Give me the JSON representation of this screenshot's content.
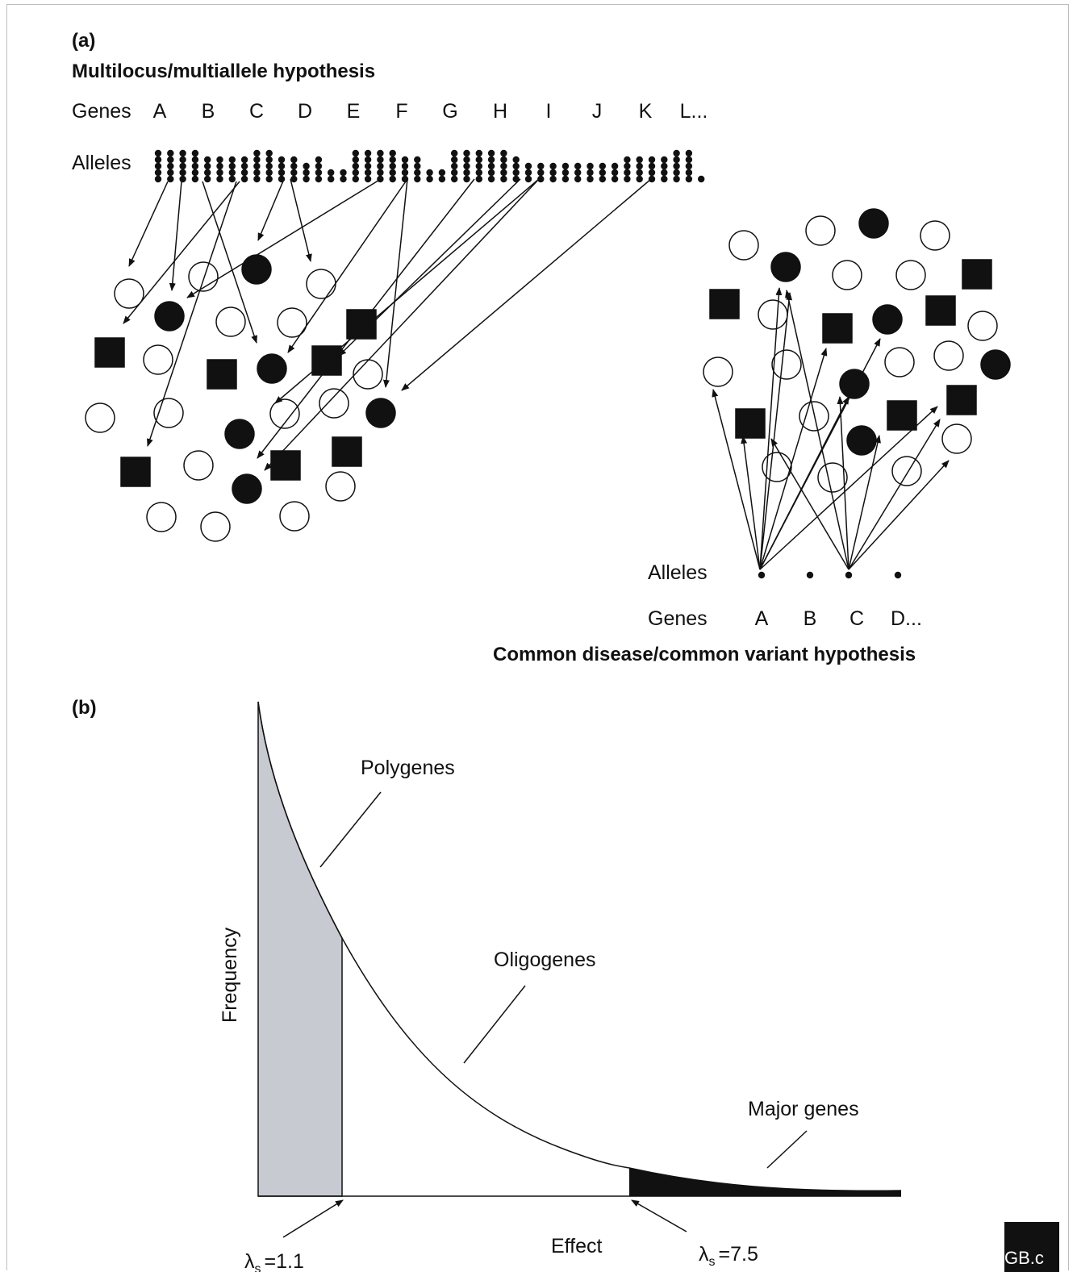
{
  "panel_a": {
    "label": "(a)",
    "title": "Multilocus/multiallele hypothesis",
    "genes_label": "Genes",
    "alleles_label": "Alleles",
    "genes": [
      "A",
      "B",
      "C",
      "D",
      "E",
      "F",
      "G",
      "H",
      "I",
      "J",
      "K",
      "L..."
    ]
  },
  "panel_a_right": {
    "title": "Common disease/common variant hypothesis",
    "genes_label": "Genes",
    "alleles_label": "Alleles",
    "genes": [
      "A",
      "B",
      "C",
      "D..."
    ]
  },
  "panel_b": {
    "label": "(b)",
    "ylabel": "Frequency",
    "xlabel": "Effect",
    "annotations": {
      "polygenes": "Polygenes",
      "oligogenes": "Oligogenes",
      "major_genes": "Major genes"
    },
    "lambda_low": "=1.1",
    "lambda_high": "=7.5",
    "lambda_symbol": "λ",
    "lambda_sub": "s"
  },
  "logo": "GB.c",
  "colors": {
    "shade": "#c8cad2",
    "ink": "#111111"
  }
}
